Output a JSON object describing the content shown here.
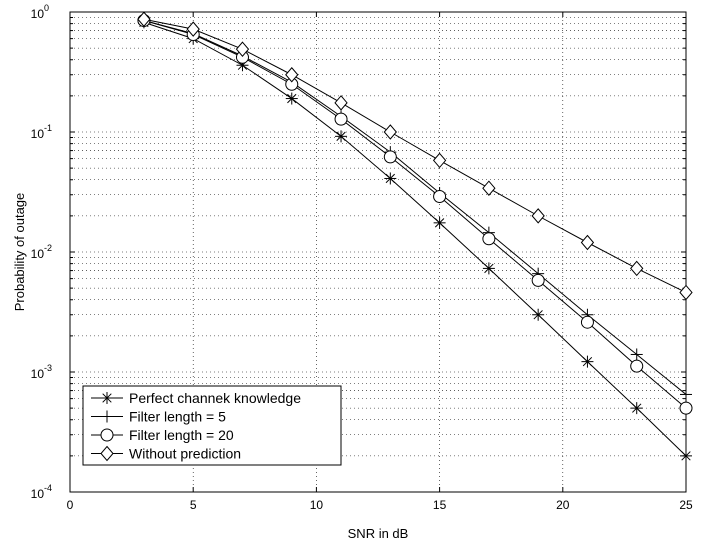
{
  "chart_data": {
    "type": "line",
    "title": "",
    "xlabel": "SNR in dB",
    "ylabel": "Probability of outage",
    "xlim": [
      0,
      25
    ],
    "ylim": [
      0.0001,
      1
    ],
    "yscale": "log",
    "grid": true,
    "legend_position": "bottom-left",
    "x_ticks": [
      "0",
      "5",
      "10",
      "15",
      "20",
      "25"
    ],
    "y_ticks": [
      {
        "base": "10",
        "exp": "0"
      },
      {
        "base": "10",
        "exp": "-1"
      },
      {
        "base": "10",
        "exp": "-2"
      },
      {
        "base": "10",
        "exp": "-3"
      },
      {
        "base": "10",
        "exp": "-4"
      }
    ],
    "series": [
      {
        "name": "Perfect channek knowledge",
        "marker": "asterisk",
        "x": [
          3,
          5,
          7,
          9,
          11,
          13,
          15,
          17,
          19,
          21,
          23,
          25
        ],
        "y": [
          0.82,
          0.6,
          0.36,
          0.19,
          0.092,
          0.041,
          0.0175,
          0.0073,
          0.003,
          0.00122,
          0.0005,
          0.0002
        ]
      },
      {
        "name": "Filter length = 5",
        "marker": "plus",
        "x": [
          3,
          5,
          7,
          9,
          11,
          13,
          15,
          17,
          19,
          21,
          23,
          25
        ],
        "y": [
          0.85,
          0.66,
          0.43,
          0.26,
          0.135,
          0.068,
          0.031,
          0.0145,
          0.0066,
          0.003,
          0.0014,
          0.00065
        ]
      },
      {
        "name": "Filter length = 20",
        "marker": "circle",
        "x": [
          3,
          5,
          7,
          9,
          11,
          13,
          15,
          17,
          19,
          21,
          23,
          25
        ],
        "y": [
          0.85,
          0.65,
          0.42,
          0.25,
          0.128,
          0.062,
          0.029,
          0.0129,
          0.0058,
          0.0026,
          0.00112,
          0.0005
        ]
      },
      {
        "name": "Without prediction",
        "marker": "diamond",
        "x": [
          3,
          5,
          7,
          9,
          11,
          13,
          15,
          17,
          19,
          21,
          23,
          25
        ],
        "y": [
          0.87,
          0.72,
          0.49,
          0.3,
          0.175,
          0.1,
          0.058,
          0.034,
          0.02,
          0.012,
          0.0073,
          0.0046
        ]
      }
    ]
  }
}
